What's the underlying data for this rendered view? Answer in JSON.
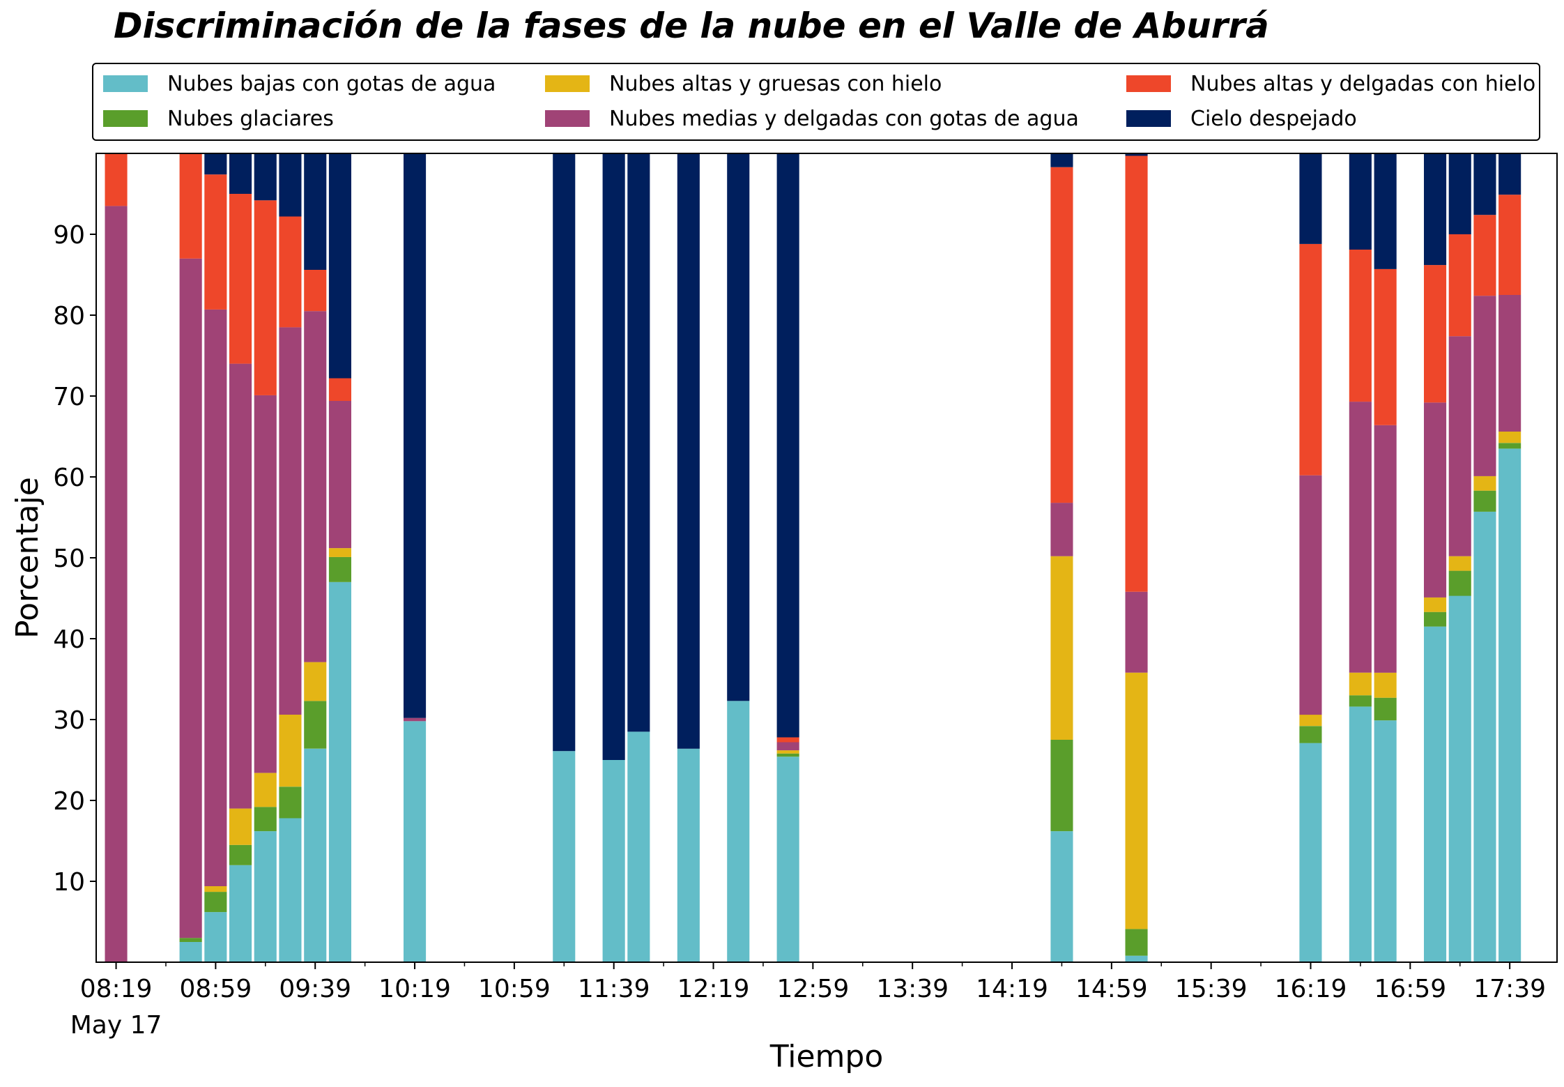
{
  "chart_data": {
    "type": "bar",
    "stacked": true,
    "title": "Discriminación de la fases de la nube en el Valle de Aburrá",
    "xlabel": "Tiempo",
    "ylabel": "Porcentaje",
    "ylim": [
      0,
      100
    ],
    "yticks": [
      "10",
      "20",
      "30",
      "40",
      "50",
      "60",
      "70",
      "80",
      "90"
    ],
    "xticks": [
      "08:19",
      "08:59",
      "09:39",
      "10:19",
      "10:59",
      "11:39",
      "12:19",
      "12:59",
      "13:39",
      "14:19",
      "14:59",
      "15:39",
      "16:19",
      "16:59",
      "17:39"
    ],
    "xtick_date": "May 17",
    "legend_position": "top",
    "series": [
      {
        "name": "Nubes bajas con gotas de agua",
        "color": "#63bdc8"
      },
      {
        "name": "Nubes glaciares",
        "color": "#5a9e2b"
      },
      {
        "name": "Nubes altas y gruesas con hielo",
        "color": "#e4b515"
      },
      {
        "name": "Nubes medias y delgadas con gotas de agua",
        "color": "#a04376"
      },
      {
        "name": "Nubes altas y delgadas con hielo",
        "color": "#ee472a"
      },
      {
        "name": "Cielo despejado",
        "color": "#001f5d"
      }
    ],
    "bars": [
      {
        "time": "08:19",
        "values": [
          0,
          0,
          0,
          93.5,
          6.5,
          0
        ]
      },
      {
        "time": "08:49",
        "values": [
          2.5,
          0.5,
          0,
          84,
          13,
          0
        ]
      },
      {
        "time": "08:59",
        "values": [
          6.2,
          2.5,
          0.7,
          71.3,
          16.7,
          2.6
        ]
      },
      {
        "time": "09:09",
        "values": [
          12,
          2.5,
          4.5,
          55,
          21,
          5
        ]
      },
      {
        "time": "09:19",
        "values": [
          16.2,
          3,
          4.2,
          46.7,
          24.1,
          5.8
        ]
      },
      {
        "time": "09:29",
        "values": [
          17.8,
          3.9,
          8.9,
          47.9,
          13.7,
          7.8
        ]
      },
      {
        "time": "09:39",
        "values": [
          26.4,
          5.9,
          4.8,
          43.4,
          5.1,
          14.4
        ]
      },
      {
        "time": "09:49",
        "values": [
          47,
          3.1,
          1.1,
          18.2,
          2.8,
          27.8
        ]
      },
      {
        "time": "10:19",
        "values": [
          29.8,
          0,
          0,
          0.4,
          0,
          69.8
        ]
      },
      {
        "time": "11:19",
        "values": [
          26.1,
          0,
          0,
          0,
          0,
          73.9
        ]
      },
      {
        "time": "11:39",
        "values": [
          25,
          0,
          0,
          0,
          0,
          75
        ]
      },
      {
        "time": "11:49",
        "values": [
          28.5,
          0,
          0,
          0,
          0,
          71.5
        ]
      },
      {
        "time": "12:09",
        "values": [
          26.4,
          0,
          0,
          0,
          0,
          73.6
        ]
      },
      {
        "time": "12:29",
        "values": [
          32.3,
          0,
          0,
          0,
          0,
          67.7
        ]
      },
      {
        "time": "12:49",
        "values": [
          25.4,
          0.4,
          0.4,
          1,
          0.6,
          72.2
        ]
      },
      {
        "time": "14:39",
        "values": [
          16.2,
          11.3,
          22.7,
          6.6,
          41.5,
          1.7
        ]
      },
      {
        "time": "15:09",
        "values": [
          0.8,
          3.3,
          31.7,
          10,
          53.9,
          0.3
        ]
      },
      {
        "time": "16:19",
        "values": [
          27.1,
          2.1,
          1.4,
          29.6,
          28.6,
          11.2
        ]
      },
      {
        "time": "16:39",
        "values": [
          31.6,
          1.4,
          2.8,
          33.5,
          18.8,
          11.9
        ]
      },
      {
        "time": "16:49",
        "values": [
          29.9,
          2.8,
          3.1,
          30.6,
          19.3,
          14.3
        ]
      },
      {
        "time": "17:09",
        "values": [
          41.5,
          1.8,
          1.8,
          24.1,
          17,
          13.8
        ]
      },
      {
        "time": "17:19",
        "values": [
          45.3,
          3.1,
          1.8,
          27.2,
          12.6,
          10
        ]
      },
      {
        "time": "17:29",
        "values": [
          55.7,
          2.6,
          1.8,
          22.3,
          10,
          7.6
        ]
      },
      {
        "time": "17:39",
        "values": [
          63.5,
          0.7,
          1.4,
          16.9,
          12.4,
          5.1
        ]
      }
    ]
  }
}
